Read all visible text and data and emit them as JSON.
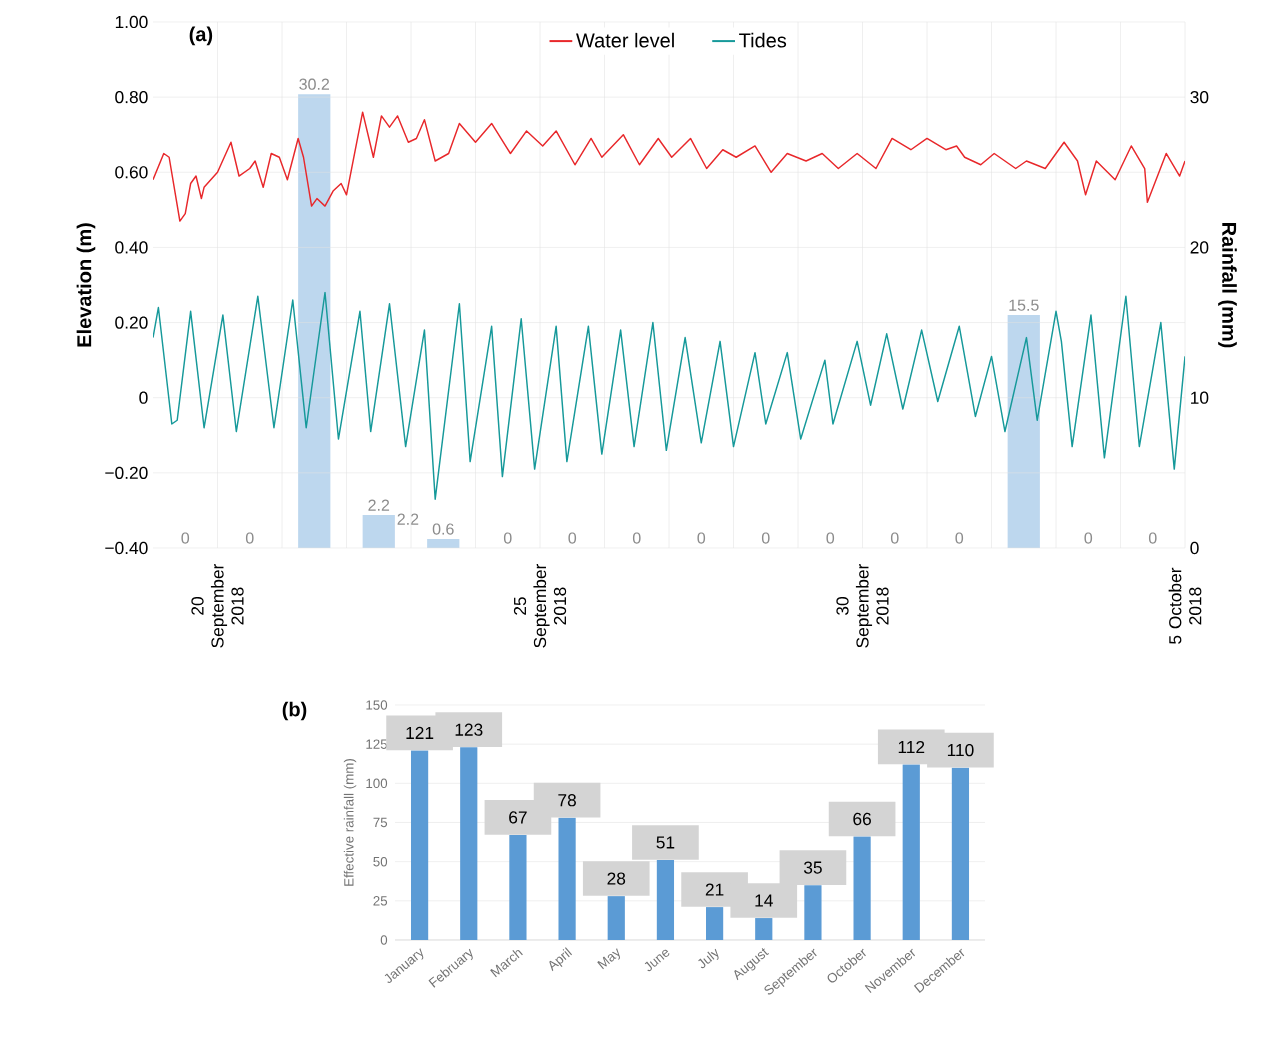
{
  "chart_data": [
    {
      "type": "line",
      "title": "(a)",
      "ylabel": "Elevation (m)",
      "y2label": "Rainfall (mm)",
      "xlim": [
        "2018-09-19",
        "2018-10-05"
      ],
      "xticks": [
        {
          "value": "2018-09-20",
          "label": "20 September 2018"
        },
        {
          "value": "2018-09-21",
          "label": null
        },
        {
          "value": "2018-09-22",
          "label": null
        },
        {
          "value": "2018-09-23",
          "label": null
        },
        {
          "value": "2018-09-24",
          "label": null
        },
        {
          "value": "2018-09-25",
          "label": "25 September 2018"
        },
        {
          "value": "2018-09-26",
          "label": null
        },
        {
          "value": "2018-09-27",
          "label": null
        },
        {
          "value": "2018-09-28",
          "label": null
        },
        {
          "value": "2018-09-29",
          "label": null
        },
        {
          "value": "2018-09-30",
          "label": "30 September 2018"
        },
        {
          "value": "2018-10-01",
          "label": null
        },
        {
          "value": "2018-10-02",
          "label": null
        },
        {
          "value": "2018-10-03",
          "label": null
        },
        {
          "value": "2018-10-04",
          "label": null
        },
        {
          "value": "2018-10-05",
          "label": "5 October 2018"
        }
      ],
      "ylim": [
        -0.4,
        1.0
      ],
      "yticks": [
        {
          "value": -0.4,
          "label": "−0.40"
        },
        {
          "value": -0.2,
          "label": "−0.20"
        },
        0,
        {
          "value": 0.2,
          "label": "0.20"
        },
        {
          "value": 0.4,
          "label": "0.40"
        },
        {
          "value": 0.6,
          "label": "0.60"
        },
        {
          "value": 0.8,
          "label": "0.80"
        },
        {
          "value": 1.0,
          "label": "1.00"
        }
      ],
      "y2lim": [
        0,
        35
      ],
      "y2ticks": [
        0,
        10,
        20,
        30
      ],
      "grid": true,
      "legend": "top",
      "annotations": [
        "2.2"
      ],
      "series": [
        {
          "type": "bar",
          "axis": "y2",
          "color": "#bdd7ee",
          "x": [
            "2018-09-19T12:00",
            "2018-09-20T12:00",
            "2018-09-21T12:00",
            "2018-09-22T12:00",
            "2018-09-23T12:00",
            "2018-09-24T12:00",
            "2018-09-25T12:00",
            "2018-09-26T12:00",
            "2018-09-27T12:00",
            "2018-09-28T12:00",
            "2018-09-29T12:00",
            "2018-09-30T12:00",
            "2018-10-01T12:00",
            "2018-10-02T12:00",
            "2018-10-03T12:00",
            "2018-10-04T12:00"
          ],
          "values": [
            0,
            0,
            30.2,
            2.2,
            0.6,
            0,
            0,
            0,
            0,
            0,
            0,
            0,
            0,
            15.5,
            0,
            0
          ],
          "value_labels": [
            "0",
            "0",
            "30.2",
            "2.2",
            "0.6",
            "0",
            "0",
            "0",
            "0",
            "0",
            "0",
            "0",
            "0",
            "15.5",
            "0",
            "0"
          ]
        },
        {
          "type": "line",
          "name": "Water level",
          "color": "#e8282b",
          "x": [
            "2018-09-19T00:00",
            "2018-09-19T04:00",
            "2018-09-19T06:00",
            "2018-09-19T10:00",
            "2018-09-19T12:00",
            "2018-09-19T14:00",
            "2018-09-19T16:00",
            "2018-09-19T18:00",
            "2018-09-19T19:00",
            "2018-09-20T00:00",
            "2018-09-20T05:00",
            "2018-09-20T08:00",
            "2018-09-20T12:00",
            "2018-09-20T14:00",
            "2018-09-20T17:00",
            "2018-09-20T20:00",
            "2018-09-20T23:00",
            "2018-09-21T02:00",
            "2018-09-21T06:00",
            "2018-09-21T08:00",
            "2018-09-21T11:00",
            "2018-09-21T13:00",
            "2018-09-21T16:00",
            "2018-09-21T19:00",
            "2018-09-21T22:00",
            "2018-09-22T00:00",
            "2018-09-22T06:00",
            "2018-09-22T10:00",
            "2018-09-22T13:00",
            "2018-09-22T16:00",
            "2018-09-22T19:00",
            "2018-09-22T23:00",
            "2018-09-23T02:00",
            "2018-09-23T05:00",
            "2018-09-23T09:00",
            "2018-09-23T14:00",
            "2018-09-23T18:00",
            "2018-09-24T00:00",
            "2018-09-24T06:00",
            "2018-09-24T13:00",
            "2018-09-24T19:00",
            "2018-09-25T01:00",
            "2018-09-25T06:00",
            "2018-09-25T13:00",
            "2018-09-25T19:00",
            "2018-09-25T23:00",
            "2018-09-26T07:00",
            "2018-09-26T13:00",
            "2018-09-26T20:00",
            "2018-09-27T01:00",
            "2018-09-27T08:00",
            "2018-09-27T14:00",
            "2018-09-27T20:00",
            "2018-09-28T01:00",
            "2018-09-28T08:00",
            "2018-09-28T14:00",
            "2018-09-28T20:00",
            "2018-09-29T03:00",
            "2018-09-29T09:00",
            "2018-09-29T15:00",
            "2018-09-29T22:00",
            "2018-09-30T05:00",
            "2018-09-30T11:00",
            "2018-09-30T18:00",
            "2018-10-01T00:00",
            "2018-10-01T07:00",
            "2018-10-01T11:00",
            "2018-10-01T14:00",
            "2018-10-01T20:00",
            "2018-10-02T01:00",
            "2018-10-02T09:00",
            "2018-10-02T13:00",
            "2018-10-02T20:00",
            "2018-10-03T03:00",
            "2018-10-03T08:00",
            "2018-10-03T11:00",
            "2018-10-03T15:00",
            "2018-10-03T22:00",
            "2018-10-04T04:00",
            "2018-10-04T09:00",
            "2018-10-04T10:00",
            "2018-10-04T17:00",
            "2018-10-04T22:00",
            "2018-10-05T00:00"
          ],
          "values": [
            0.58,
            0.65,
            0.64,
            0.47,
            0.49,
            0.57,
            0.59,
            0.53,
            0.56,
            0.6,
            0.68,
            0.59,
            0.61,
            0.63,
            0.56,
            0.65,
            0.64,
            0.58,
            0.69,
            0.64,
            0.51,
            0.53,
            0.51,
            0.55,
            0.57,
            0.54,
            0.76,
            0.64,
            0.75,
            0.72,
            0.75,
            0.68,
            0.69,
            0.74,
            0.63,
            0.65,
            0.73,
            0.68,
            0.73,
            0.65,
            0.71,
            0.67,
            0.71,
            0.62,
            0.69,
            0.64,
            0.7,
            0.62,
            0.69,
            0.64,
            0.69,
            0.61,
            0.66,
            0.64,
            0.67,
            0.6,
            0.65,
            0.63,
            0.65,
            0.61,
            0.65,
            0.61,
            0.69,
            0.66,
            0.69,
            0.66,
            0.67,
            0.64,
            0.62,
            0.65,
            0.61,
            0.63,
            0.61,
            0.68,
            0.63,
            0.54,
            0.63,
            0.58,
            0.67,
            0.61,
            0.52,
            0.65,
            0.59,
            0.63
          ]
        },
        {
          "type": "line",
          "name": "Tides",
          "color": "#16999a",
          "x": [
            "2018-09-19T00:00",
            "2018-09-19T02:00",
            "2018-09-19T07:00",
            "2018-09-19T09:00",
            "2018-09-19T14:00",
            "2018-09-19T19:00",
            "2018-09-20T02:00",
            "2018-09-20T07:00",
            "2018-09-20T15:00",
            "2018-09-20T21:00",
            "2018-09-21T04:00",
            "2018-09-21T09:00",
            "2018-09-21T16:00",
            "2018-09-21T21:00",
            "2018-09-22T05:00",
            "2018-09-22T09:00",
            "2018-09-22T16:00",
            "2018-09-22T22:00",
            "2018-09-23T05:00",
            "2018-09-23T09:00",
            "2018-09-23T18:00",
            "2018-09-23T22:00",
            "2018-09-24T06:00",
            "2018-09-24T10:00",
            "2018-09-24T17:00",
            "2018-09-24T22:00",
            "2018-09-25T06:00",
            "2018-09-25T10:00",
            "2018-09-25T18:00",
            "2018-09-25T23:00",
            "2018-09-26T06:00",
            "2018-09-26T11:00",
            "2018-09-26T18:00",
            "2018-09-26T23:00",
            "2018-09-27T06:00",
            "2018-09-27T12:00",
            "2018-09-27T19:00",
            "2018-09-28T00:00",
            "2018-09-28T08:00",
            "2018-09-28T12:00",
            "2018-09-28T20:00",
            "2018-09-29T01:00",
            "2018-09-29T10:00",
            "2018-09-29T13:00",
            "2018-09-29T22:00",
            "2018-09-30T03:00",
            "2018-09-30T09:00",
            "2018-09-30T15:00",
            "2018-09-30T22:00",
            "2018-10-01T04:00",
            "2018-10-01T12:00",
            "2018-10-01T18:00",
            "2018-10-02T00:00",
            "2018-10-02T05:00",
            "2018-10-02T13:00",
            "2018-10-02T17:00",
            "2018-10-03T00:00",
            "2018-10-03T02:00",
            "2018-10-03T06:00",
            "2018-10-03T13:00",
            "2018-10-03T18:00",
            "2018-10-04T02:00",
            "2018-10-04T07:00",
            "2018-10-04T15:00",
            "2018-10-04T20:00",
            "2018-10-05T00:00"
          ],
          "values": [
            0.16,
            0.24,
            -0.07,
            -0.06,
            0.23,
            -0.08,
            0.22,
            -0.09,
            0.27,
            -0.08,
            0.26,
            -0.08,
            0.28,
            -0.11,
            0.23,
            -0.09,
            0.25,
            -0.13,
            0.18,
            -0.27,
            0.25,
            -0.17,
            0.19,
            -0.21,
            0.21,
            -0.19,
            0.19,
            -0.17,
            0.19,
            -0.15,
            0.18,
            -0.13,
            0.2,
            -0.14,
            0.16,
            -0.12,
            0.15,
            -0.13,
            0.12,
            -0.07,
            0.12,
            -0.11,
            0.1,
            -0.07,
            0.15,
            -0.02,
            0.17,
            -0.03,
            0.18,
            -0.01,
            0.19,
            -0.05,
            0.11,
            -0.09,
            0.16,
            -0.06,
            0.23,
            0.15,
            -0.13,
            0.22,
            -0.16,
            0.27,
            -0.13,
            0.2,
            -0.19,
            0.11
          ]
        }
      ]
    },
    {
      "type": "bar",
      "title": "(b)",
      "ylabel": "Effective rainfall (mm)",
      "categories": [
        "January",
        "February",
        "March",
        "April",
        "May",
        "June",
        "July",
        "August",
        "September",
        "October",
        "November",
        "December"
      ],
      "values": [
        121,
        123,
        67,
        78,
        28,
        51,
        21,
        14,
        35,
        66,
        112,
        110
      ],
      "color": "#5b9bd5",
      "ylim": [
        0,
        150
      ],
      "yticks": [
        0,
        25,
        50,
        75,
        100,
        125,
        150
      ],
      "grid": "y",
      "data_labels": true
    }
  ]
}
